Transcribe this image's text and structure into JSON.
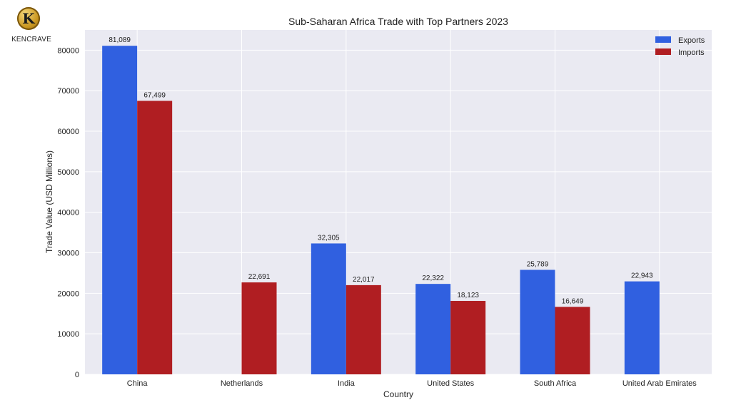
{
  "logo": {
    "letter": "K",
    "brand": "KENCRAVE"
  },
  "colors": {
    "exports": "#3060e0",
    "imports": "#b01e22",
    "plot_bg": "#eaeaf2",
    "grid": "#ffffff"
  },
  "chart_data": {
    "type": "bar",
    "title": "Sub-Saharan Africa Trade with Top Partners 2023",
    "xlabel": "Country",
    "ylabel": "Trade Value (USD Millions)",
    "categories": [
      "China",
      "Netherlands",
      "India",
      "United States",
      "South Africa",
      "United Arab Emirates"
    ],
    "series": [
      {
        "name": "Exports",
        "values": [
          81089,
          null,
          32305,
          22322,
          25789,
          22943
        ]
      },
      {
        "name": "Imports",
        "values": [
          67499,
          22691,
          22017,
          18123,
          16649,
          null
        ]
      }
    ],
    "ylim": [
      0,
      85000
    ],
    "yticks": [
      0,
      10000,
      20000,
      30000,
      40000,
      50000,
      60000,
      70000,
      80000
    ],
    "grid": true,
    "legend": "top-right"
  }
}
